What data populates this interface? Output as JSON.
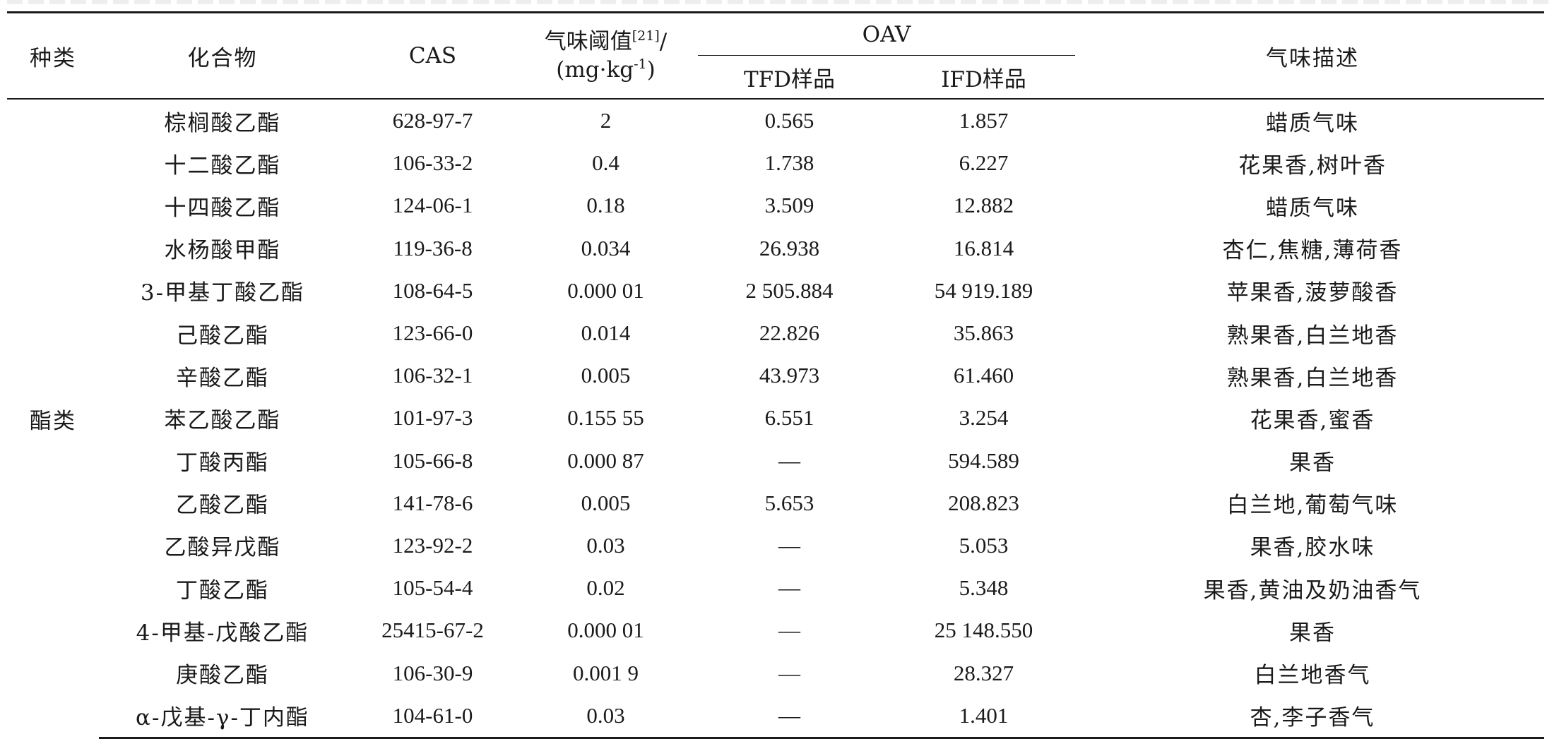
{
  "table": {
    "headers": {
      "category": "种类",
      "compound": "化合物",
      "cas": "CAS",
      "threshold_line1": "气味阈值",
      "threshold_ref": "[21]",
      "threshold_slash": "/",
      "threshold_line2": "(mg·kg",
      "threshold_exp": "-1",
      "threshold_close": ")",
      "oav": "OAV",
      "tfd": "TFD样品",
      "ifd": "IFD样品",
      "odor": "气味描述"
    },
    "category_label": "酯类",
    "rows": [
      {
        "compound": "棕榈酸乙酯",
        "cas": "628-97-7",
        "threshold": "2",
        "tfd": "0.565",
        "ifd": "1.857",
        "odor": "蜡质气味"
      },
      {
        "compound": "十二酸乙酯",
        "cas": "106-33-2",
        "threshold": "0.4",
        "tfd": "1.738",
        "ifd": "6.227",
        "odor": "花果香,树叶香"
      },
      {
        "compound": "十四酸乙酯",
        "cas": "124-06-1",
        "threshold": "0.18",
        "tfd": "3.509",
        "ifd": "12.882",
        "odor": "蜡质气味"
      },
      {
        "compound": "水杨酸甲酯",
        "cas": "119-36-8",
        "threshold": "0.034",
        "tfd": "26.938",
        "ifd": "16.814",
        "odor": "杏仁,焦糖,薄荷香"
      },
      {
        "compound": "3-甲基丁酸乙酯",
        "cas": "108-64-5",
        "threshold": "0.000 01",
        "tfd": "2 505.884",
        "ifd": "54 919.189",
        "odor": "苹果香,菠萝酸香"
      },
      {
        "compound": "己酸乙酯",
        "cas": "123-66-0",
        "threshold": "0.014",
        "tfd": "22.826",
        "ifd": "35.863",
        "odor": "熟果香,白兰地香"
      },
      {
        "compound": "辛酸乙酯",
        "cas": "106-32-1",
        "threshold": "0.005",
        "tfd": "43.973",
        "ifd": "61.460",
        "odor": "熟果香,白兰地香"
      },
      {
        "compound": "苯乙酸乙酯",
        "cas": "101-97-3",
        "threshold": "0.155 55",
        "tfd": "6.551",
        "ifd": "3.254",
        "odor": "花果香,蜜香"
      },
      {
        "compound": "丁酸丙酯",
        "cas": "105-66-8",
        "threshold": "0.000 87",
        "tfd": "—",
        "ifd": "594.589",
        "odor": "果香"
      },
      {
        "compound": "乙酸乙酯",
        "cas": "141-78-6",
        "threshold": "0.005",
        "tfd": "5.653",
        "ifd": "208.823",
        "odor": "白兰地,葡萄气味"
      },
      {
        "compound": "乙酸异戊酯",
        "cas": "123-92-2",
        "threshold": "0.03",
        "tfd": "—",
        "ifd": "5.053",
        "odor": "果香,胶水味"
      },
      {
        "compound": "丁酸乙酯",
        "cas": "105-54-4",
        "threshold": "0.02",
        "tfd": "—",
        "ifd": "5.348",
        "odor": "果香,黄油及奶油香气"
      },
      {
        "compound": "4-甲基-戊酸乙酯",
        "cas": "25415-67-2",
        "threshold": "0.000 01",
        "tfd": "—",
        "ifd": "25 148.550",
        "odor": "果香"
      },
      {
        "compound": "庚酸乙酯",
        "cas": "106-30-9",
        "threshold": "0.001 9",
        "tfd": "—",
        "ifd": "28.327",
        "odor": "白兰地香气"
      },
      {
        "compound": "α-戊基-γ-丁内酯",
        "cas": "104-61-0",
        "threshold": "0.03",
        "tfd": "—",
        "ifd": "1.401",
        "odor": "杏,李子香气"
      }
    ]
  }
}
